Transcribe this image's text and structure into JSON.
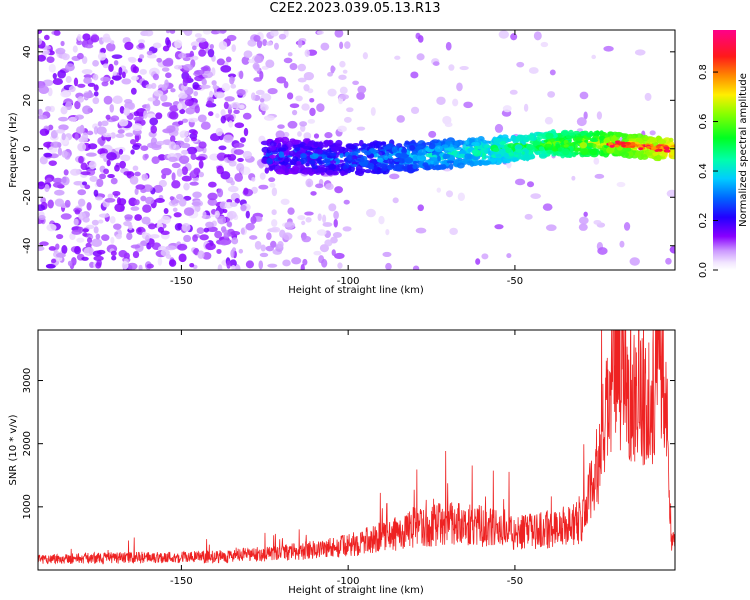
{
  "title": "C2E2.2023.039.05.13.R13",
  "colors": {
    "snr_line": "#ee2222",
    "frame": "#000000"
  },
  "chart_data": [
    {
      "type": "heatmap",
      "xlabel": "Height of straight line (km)",
      "ylabel": "Frequency (Hz)",
      "xlim": [
        -193,
        -2
      ],
      "ylim": [
        -50,
        49
      ],
      "x_ticks": [
        -150,
        -100,
        -50
      ],
      "y_ticks": [
        -40,
        -20,
        0,
        20,
        40
      ],
      "x_tick_labels": [
        "-150",
        "-100",
        "-50"
      ],
      "y_tick_labels": [
        "-40",
        "-20",
        "0",
        "20",
        "40"
      ],
      "colorbar": {
        "label": "Normalized spectral amplitude",
        "range": [
          0,
          0.97
        ],
        "ticks": [
          0.0,
          0.2,
          0.4,
          0.6,
          0.8
        ],
        "tick_labels": [
          "0.0",
          "0.2",
          "0.4",
          "0.6",
          "0.8"
        ],
        "colormap": "gist_rainbow_r"
      },
      "ridge": {
        "description_points_x": [
          -120,
          -100,
          -80,
          -60,
          -40,
          -20,
          -5
        ],
        "description_points_y": [
          -3,
          -4,
          -3,
          -1,
          2,
          2,
          0
        ]
      }
    },
    {
      "type": "line",
      "xlabel": "Height of straight line (km)",
      "ylabel": "SNR (10 * v/v)",
      "xlim": [
        -193,
        -2
      ],
      "ylim": [
        0,
        3800
      ],
      "x_ticks": [
        -150,
        -100,
        -50
      ],
      "y_ticks": [
        1000,
        2000,
        3000
      ],
      "x_tick_labels": [
        "-150",
        "-100",
        "-50"
      ],
      "y_tick_labels": [
        "1000",
        "2000",
        "3000"
      ],
      "series": [
        {
          "x": [
            -193,
            -180,
            -160,
            -140,
            -120,
            -100,
            -90,
            -80,
            -70,
            -60,
            -50,
            -40,
            -30,
            -25,
            -20,
            -15,
            -10,
            -5,
            -3,
            -2
          ],
          "y": [
            150,
            160,
            170,
            180,
            230,
            330,
            450,
            550,
            650,
            600,
            500,
            550,
            650,
            1500,
            2800,
            2500,
            2300,
            2800,
            300,
            550
          ]
        }
      ]
    }
  ]
}
